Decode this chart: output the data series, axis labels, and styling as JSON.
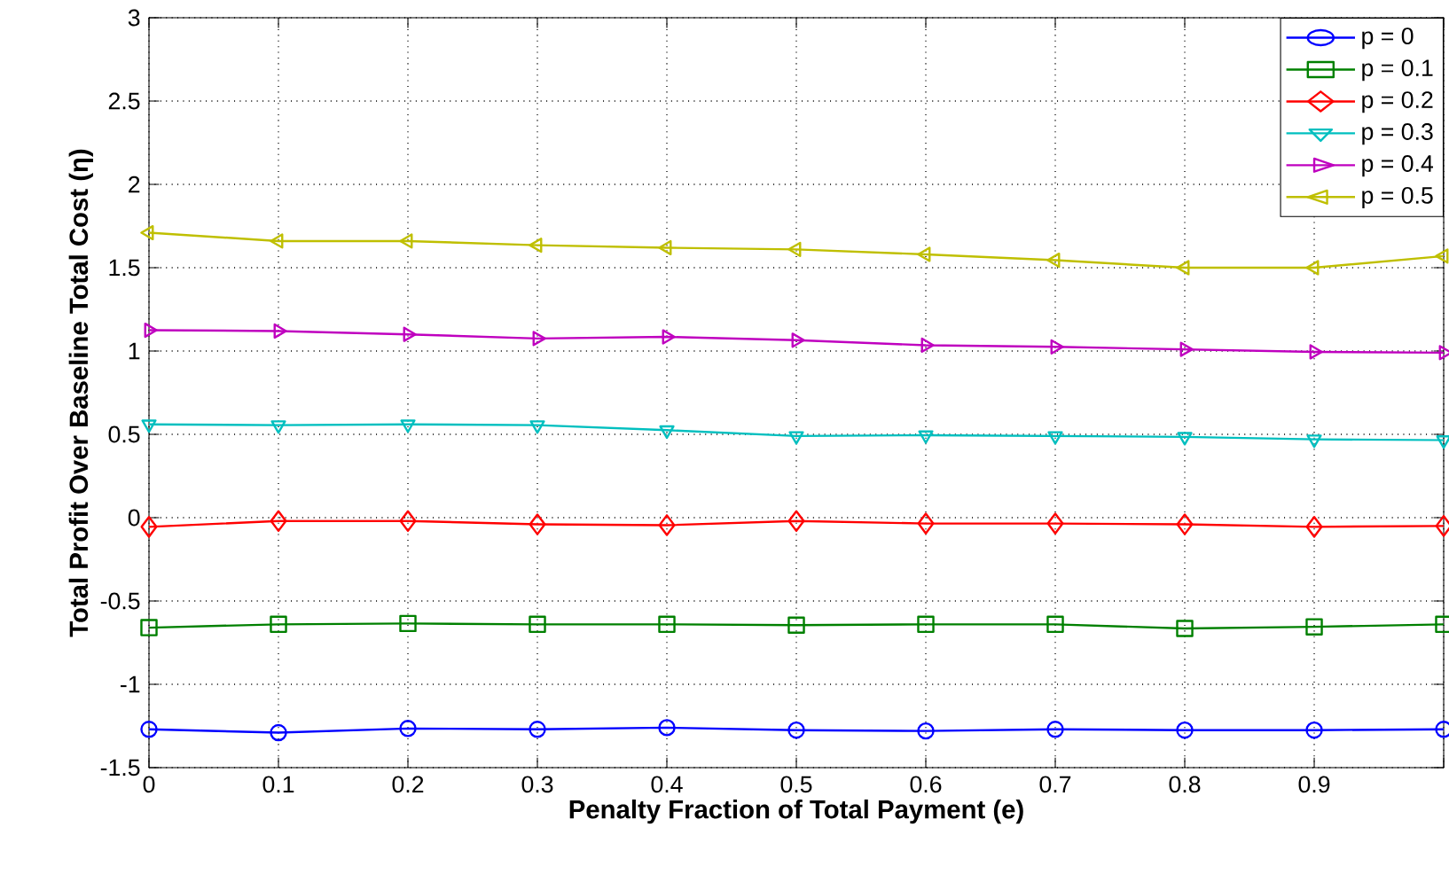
{
  "chart_data": {
    "type": "line",
    "xlabel": "Penalty Fraction of Total Payment (e)",
    "ylabel": "Total Profit Over Baseline Total Cost (η)",
    "x": [
      0,
      0.1,
      0.2,
      0.3,
      0.4,
      0.5,
      0.6,
      0.7,
      0.8,
      0.9,
      1
    ],
    "series": [
      {
        "name": "p = 0",
        "color": "#0000ff",
        "marker": "circle",
        "values": [
          -1.27,
          -1.29,
          -1.265,
          -1.27,
          -1.26,
          -1.275,
          -1.28,
          -1.27,
          -1.275,
          -1.275,
          -1.27
        ]
      },
      {
        "name": "p = 0.1",
        "color": "#008000",
        "marker": "square",
        "values": [
          -0.66,
          -0.64,
          -0.635,
          -0.64,
          -0.64,
          -0.645,
          -0.64,
          -0.64,
          -0.665,
          -0.655,
          -0.64
        ]
      },
      {
        "name": "p = 0.2",
        "color": "#ff0000",
        "marker": "diamond",
        "values": [
          -0.055,
          -0.02,
          -0.02,
          -0.04,
          -0.045,
          -0.02,
          -0.035,
          -0.035,
          -0.04,
          -0.055,
          -0.05
        ]
      },
      {
        "name": "p = 0.3",
        "color": "#00bfbf",
        "marker": "triangle-down",
        "values": [
          0.56,
          0.555,
          0.56,
          0.555,
          0.525,
          0.49,
          0.495,
          0.49,
          0.485,
          0.47,
          0.465
        ]
      },
      {
        "name": "p = 0.4",
        "color": "#bf00bf",
        "marker": "triangle-right",
        "values": [
          1.125,
          1.12,
          1.1,
          1.075,
          1.085,
          1.065,
          1.035,
          1.025,
          1.01,
          0.995,
          0.99
        ]
      },
      {
        "name": "p = 0.5",
        "color": "#bfbf00",
        "marker": "triangle-left",
        "values": [
          1.71,
          1.66,
          1.66,
          1.635,
          1.62,
          1.61,
          1.58,
          1.545,
          1.5,
          1.5,
          1.57
        ]
      }
    ],
    "xlim": [
      0,
      1
    ],
    "ylim": [
      -1.5,
      3
    ],
    "xticks": [
      0,
      0.1,
      0.2,
      0.3,
      0.4,
      0.5,
      0.6,
      0.7,
      0.8,
      0.9,
      {
        "value": 1,
        "label": null
      }
    ],
    "yticks": [
      -1.5,
      -1,
      -0.5,
      0,
      0.5,
      1,
      1.5,
      2,
      2.5,
      3
    ],
    "grid": true,
    "legend": "top right",
    "line_style": "solid"
  }
}
